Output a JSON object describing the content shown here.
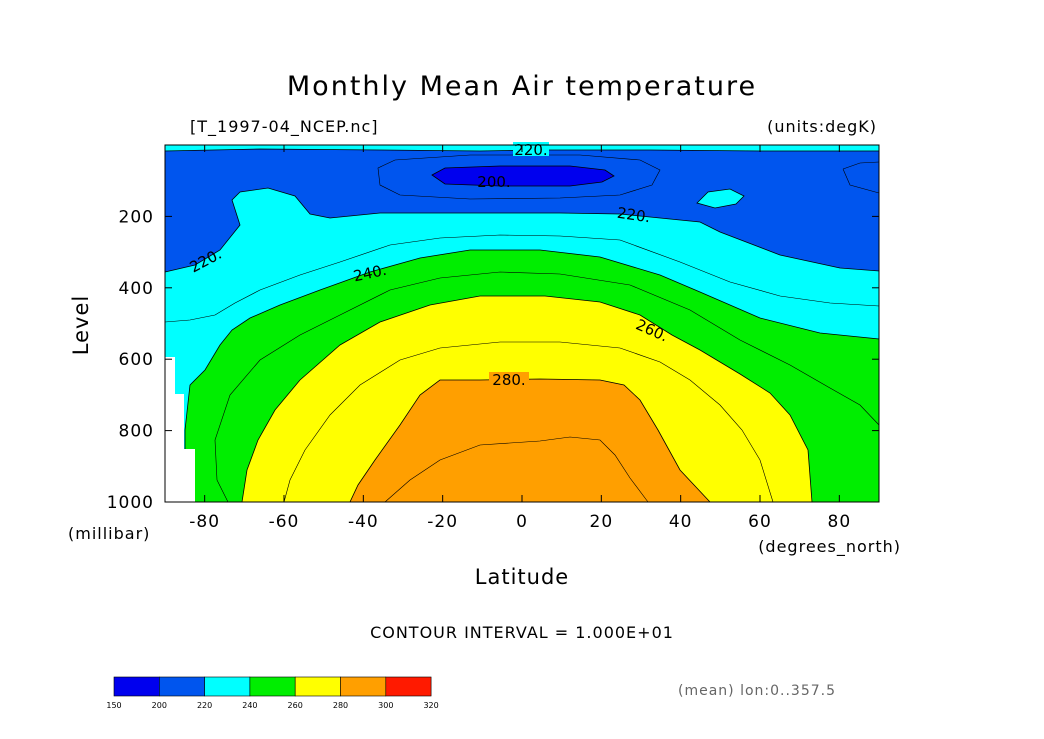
{
  "chart_data": {
    "type": "contour",
    "title": "Monthly Mean Air temperature",
    "file_label": "[T_1997-04_NCEP.nc]",
    "units_label": "(units:degK)",
    "xlabel": "Latitude",
    "xunit": "(degrees_north)",
    "ylabel": "Level",
    "yunit": "(millibar)",
    "xlim": [
      -90,
      90
    ],
    "ylim": [
      1000,
      0
    ],
    "x_ticks": [
      -80,
      -60,
      -40,
      -20,
      0,
      20,
      40,
      60,
      80
    ],
    "x_tick_labels": [
      "-80",
      "-60",
      "-40",
      "-20",
      "0",
      "20",
      "40",
      "60",
      "80"
    ],
    "y_ticks": [
      200,
      400,
      600,
      800,
      1000
    ],
    "y_tick_labels": [
      "200",
      "400",
      "600",
      "800",
      "1000"
    ],
    "contour_interval_text": "CONTOUR INTERVAL = 1.000E+01",
    "contour_interval": 10,
    "contour_labels": [
      "220.",
      "200.",
      "220.",
      "220.",
      "240.",
      "260.",
      "280."
    ],
    "colorbar": {
      "levels": [
        150,
        200,
        220,
        240,
        260,
        280,
        300,
        320
      ],
      "labels": [
        "150",
        "200",
        "220",
        "240",
        "260",
        "280",
        "300",
        "320"
      ],
      "colors": [
        "#0000ee",
        "#0055ee",
        "#00ffff",
        "#00ee00",
        "#ffff00",
        "#ff9f00",
        "#ff1a00"
      ]
    },
    "bands": [
      {
        "range": "200-220",
        "color": "#0055ee"
      },
      {
        "range": "<200",
        "color": "#0000ee"
      },
      {
        "range": "220-240",
        "color": "#00ffff"
      },
      {
        "range": "240-260",
        "color": "#00ee00"
      },
      {
        "range": "260-280",
        "color": "#ffff00"
      },
      {
        "range": "280-300",
        "color": "#ff9f00"
      }
    ],
    "footer_note": "(mean) lon:0..357.5",
    "grid": false
  }
}
